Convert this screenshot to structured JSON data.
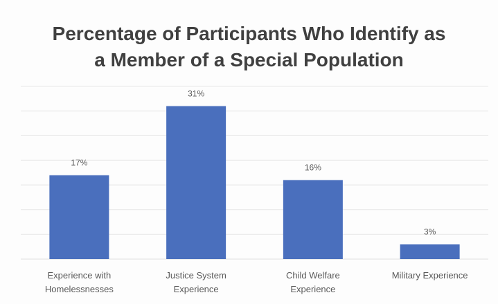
{
  "chart_data": {
    "type": "bar",
    "title_lines": [
      "Percentage of Participants Who Identify as",
      "a Member of a Special Population"
    ],
    "categories": [
      [
        "Experience with",
        "Homelessnesses"
      ],
      [
        "Justice System",
        "Experience"
      ],
      [
        "Child Welfare",
        "Experience"
      ],
      [
        "Military Experience"
      ]
    ],
    "values": [
      17,
      31,
      16,
      3
    ],
    "data_labels": [
      "17%",
      "31%",
      "16%",
      "3%"
    ],
    "unit": "%",
    "ylim": [
      0,
      35
    ],
    "grid": true,
    "bar_color": "#4a6fbd",
    "grid_color": "#e6e6e6"
  }
}
